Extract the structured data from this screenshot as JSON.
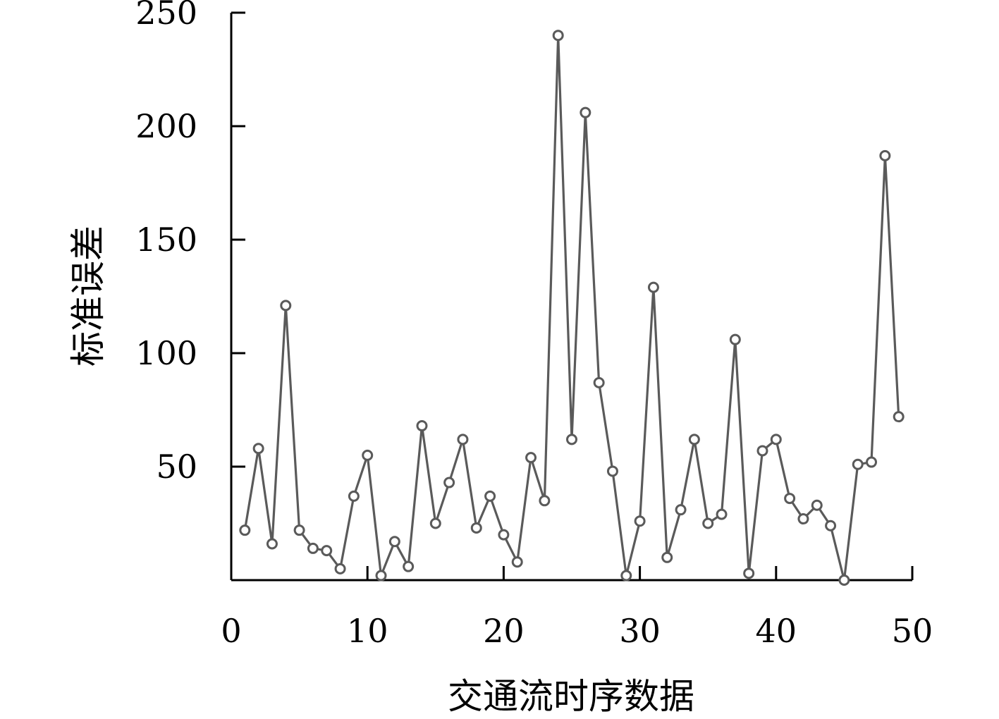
{
  "chart_data": {
    "type": "line",
    "xlabel": "交通流时序数据",
    "ylabel": "标准误差",
    "xlim": [
      0,
      50
    ],
    "ylim": [
      0,
      250
    ],
    "xticks": [
      0,
      10,
      20,
      30,
      40,
      50
    ],
    "yticks": [
      50,
      100,
      150,
      200,
      250
    ],
    "x": [
      1,
      2,
      3,
      4,
      5,
      6,
      7,
      8,
      9,
      10,
      11,
      12,
      13,
      14,
      15,
      16,
      17,
      18,
      19,
      20,
      21,
      22,
      23,
      24,
      25,
      26,
      27,
      28,
      29,
      30,
      31,
      32,
      33,
      34,
      35,
      36,
      37,
      38,
      39,
      40,
      41,
      42,
      43,
      44,
      45,
      46,
      47,
      48,
      49
    ],
    "series": [
      {
        "color": "#5a5a5a",
        "marker": "circle",
        "values": [
          22,
          58,
          16,
          121,
          22,
          14,
          13,
          5,
          37,
          55,
          2,
          17,
          6,
          68,
          25,
          43,
          62,
          23,
          37,
          20,
          8,
          54,
          35,
          240,
          62,
          206,
          87,
          48,
          2,
          26,
          129,
          10,
          31,
          62,
          25,
          29,
          106,
          3,
          57,
          62,
          36,
          27,
          33,
          24,
          0,
          51,
          52,
          187,
          72
        ]
      }
    ],
    "grid": false,
    "legend": "none"
  }
}
